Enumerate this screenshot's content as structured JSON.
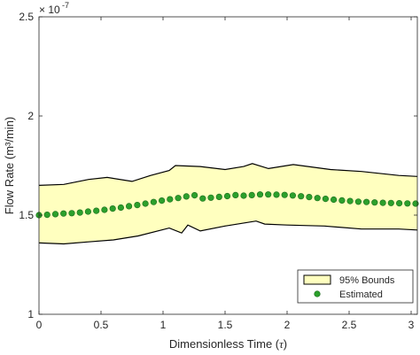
{
  "chart_data": {
    "type": "line",
    "xlabel_main": "Dimensionless Time (",
    "xlabel_symbol": "τ",
    "xlabel_close": ")",
    "ylabel": "Flow Rate (m³/min)",
    "yscale_exponent_base": "× 10",
    "yscale_exponent_power": "-7",
    "xlim": [
      0,
      3.05
    ],
    "ylim": [
      1,
      2.5
    ],
    "xticks": [
      0,
      0.5,
      1,
      1.5,
      2,
      2.5,
      3
    ],
    "xtick_labels": [
      "0",
      "0.5",
      "1",
      "1.5",
      "2",
      "2.5",
      "3"
    ],
    "yticks": [
      1,
      1.5,
      2,
      2.5
    ],
    "ytick_labels": [
      "1",
      "1.5",
      "2",
      "2.5"
    ],
    "grid": false,
    "legend_position": "bottom-right",
    "legend": [
      {
        "name": "95% Bounds",
        "kind": "band"
      },
      {
        "name": "Estimated",
        "kind": "marker"
      }
    ],
    "band": {
      "name": "95% Bounds",
      "fill_color": "#FFFFBF",
      "edge_color": "#000000",
      "upper": {
        "x": [
          0,
          0.2,
          0.4,
          0.55,
          0.75,
          0.9,
          1.05,
          1.1,
          1.3,
          1.5,
          1.65,
          1.72,
          1.85,
          2.05,
          2.35,
          2.6,
          2.9,
          3.05
        ],
        "y": [
          1.65,
          1.655,
          1.68,
          1.69,
          1.67,
          1.7,
          1.725,
          1.75,
          1.745,
          1.73,
          1.745,
          1.76,
          1.735,
          1.755,
          1.73,
          1.72,
          1.7,
          1.695
        ]
      },
      "lower": {
        "x": [
          0,
          0.2,
          0.4,
          0.6,
          0.8,
          1.05,
          1.15,
          1.2,
          1.3,
          1.5,
          1.75,
          1.82,
          2.0,
          2.3,
          2.6,
          2.9,
          3.05
        ],
        "y": [
          1.36,
          1.355,
          1.365,
          1.375,
          1.395,
          1.435,
          1.41,
          1.45,
          1.42,
          1.445,
          1.47,
          1.455,
          1.45,
          1.445,
          1.43,
          1.43,
          1.425
        ]
      }
    },
    "series": [
      {
        "name": "Estimated",
        "color": "#2CA02C",
        "marker": "circle",
        "x": [
          0.0,
          0.066,
          0.132,
          0.198,
          0.264,
          0.33,
          0.396,
          0.462,
          0.528,
          0.594,
          0.66,
          0.726,
          0.792,
          0.858,
          0.924,
          0.99,
          1.056,
          1.122,
          1.188,
          1.254,
          1.32,
          1.386,
          1.452,
          1.518,
          1.584,
          1.65,
          1.716,
          1.782,
          1.848,
          1.914,
          1.98,
          2.046,
          2.112,
          2.178,
          2.244,
          2.31,
          2.376,
          2.442,
          2.508,
          2.574,
          2.64,
          2.706,
          2.772,
          2.838,
          2.904,
          2.97,
          3.036
        ],
        "y": [
          1.5,
          1.502,
          1.505,
          1.508,
          1.51,
          1.513,
          1.518,
          1.522,
          1.527,
          1.533,
          1.538,
          1.545,
          1.551,
          1.558,
          1.566,
          1.573,
          1.58,
          1.586,
          1.594,
          1.6,
          1.584,
          1.588,
          1.592,
          1.596,
          1.601,
          1.598,
          1.601,
          1.604,
          1.604,
          1.603,
          1.602,
          1.599,
          1.595,
          1.591,
          1.586,
          1.582,
          1.578,
          1.574,
          1.571,
          1.568,
          1.566,
          1.564,
          1.562,
          1.561,
          1.56,
          1.559,
          1.558
        ]
      }
    ]
  }
}
